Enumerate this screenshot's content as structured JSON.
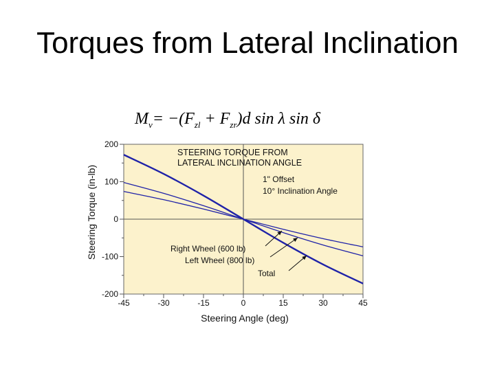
{
  "slide_title": "Torques from Lateral Inclination",
  "formula": {
    "lhs": "M",
    "lhs_sub": "ν",
    "eq": "= −(",
    "f1": "F",
    "f1_sub": "zl",
    "plus": " + ",
    "f2": "F",
    "f2_sub": "zr",
    "rest": ")d sin λ sin δ"
  },
  "colors": {
    "plot_background": "#fcf2cc",
    "curve": "#1f22a8",
    "axis": "#555555",
    "tick_text": "#111111"
  },
  "chart_data": {
    "type": "line",
    "title": "STEERING TORQUE FROM LATERAL INCLINATION ANGLE",
    "title_lines": [
      "STEERING TORQUE FROM",
      "LATERAL INCLINATION ANGLE"
    ],
    "annotations": [
      "1\" Offset",
      "10° Inclination Angle"
    ],
    "xlabel": "Steering Angle (deg)",
    "ylabel": "Steering Torque (in-lb)",
    "xlim": [
      -45,
      45
    ],
    "ylim": [
      -200,
      200
    ],
    "xticks": [
      -45,
      -30,
      -15,
      0,
      15,
      30,
      45
    ],
    "yticks": [
      -200,
      -100,
      0,
      100,
      200
    ],
    "grid": false,
    "series": [
      {
        "name": "Right Wheel (600 lb)",
        "x": [
          -45,
          -30,
          -15,
          0,
          15,
          30,
          45
        ],
        "y": [
          74,
          52,
          27,
          0,
          -27,
          -52,
          -74
        ]
      },
      {
        "name": "Left Wheel (800 lb)",
        "x": [
          -45,
          -30,
          -15,
          0,
          15,
          30,
          45
        ],
        "y": [
          98,
          69,
          36,
          0,
          -36,
          -69,
          -98
        ]
      },
      {
        "name": "Total",
        "x": [
          -45,
          -30,
          -15,
          0,
          15,
          30,
          45
        ],
        "y": [
          172,
          121,
          63,
          0,
          -63,
          -121,
          -172
        ]
      }
    ]
  }
}
